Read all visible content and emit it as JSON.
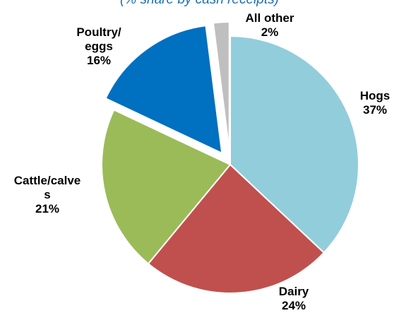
{
  "chart_data": {
    "type": "pie",
    "title": "(% share by cash receipts)",
    "slices": [
      {
        "label": "Hogs",
        "value": 37,
        "value_label": "37%",
        "color": "#92cddc",
        "exploded": false
      },
      {
        "label": "Dairy",
        "value": 24,
        "value_label": "24%",
        "color": "#c0504d",
        "exploded": false
      },
      {
        "label": "Cattle/calve s",
        "value": 21,
        "value_label": "21%",
        "color": "#9bbb59",
        "exploded": false
      },
      {
        "label": "Poultry/ eggs",
        "value": 16,
        "value_label": "16%",
        "color": "#0070c0",
        "exploded": true
      },
      {
        "label": "All other",
        "value": 2,
        "value_label": "2%",
        "color": "#bfbfbf",
        "exploded": true
      }
    ]
  },
  "labels": {
    "hogs": {
      "line1": "Hogs",
      "line2": "37%"
    },
    "dairy": {
      "line1": "Dairy",
      "line2": "24%"
    },
    "cattle": {
      "line1": "Cattle/calve",
      "line2": "s",
      "line3": "21%"
    },
    "poultry": {
      "line1": "Poultry/",
      "line2": "eggs",
      "line3": "16%"
    },
    "other": {
      "line1": "All other",
      "line2": "2%"
    }
  }
}
